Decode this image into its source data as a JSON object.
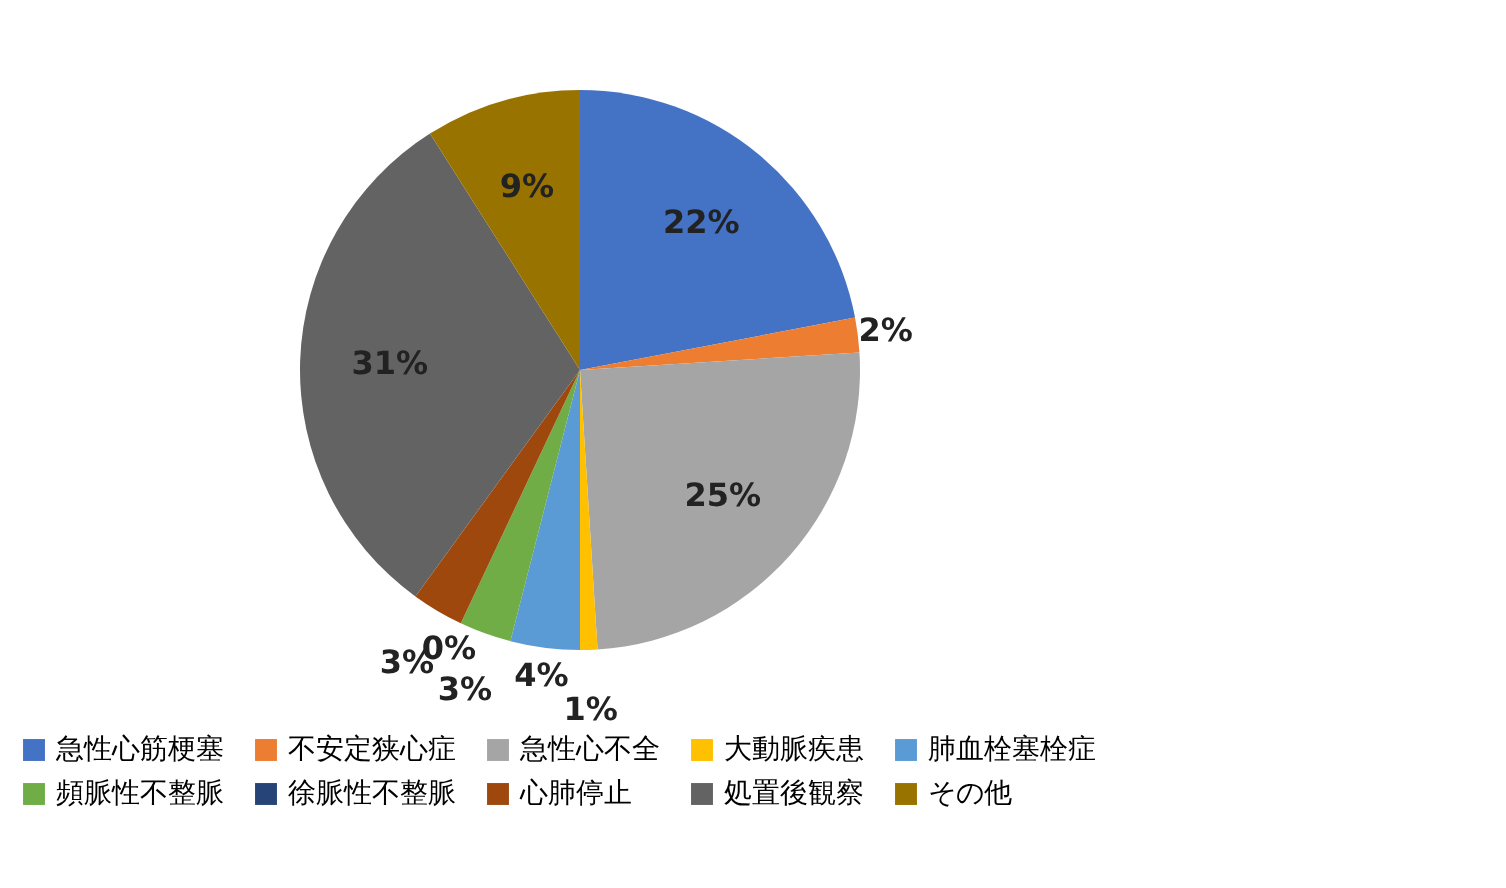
{
  "chart_data": {
    "type": "pie",
    "categories": [
      "急性心筋梗塞",
      "不安定狭心症",
      "急性心不全",
      "大動脈疾患",
      "肺血栓塞栓症",
      "頻脈性不整脈",
      "徐脈性不整脈",
      "心肺停止",
      "処置後観察",
      "その他"
    ],
    "values": [
      22,
      2,
      25,
      1,
      4,
      3,
      0,
      3,
      31,
      9
    ],
    "colors": [
      "#4472c4",
      "#ed7d31",
      "#a5a5a5",
      "#ffc000",
      "#5b9bd5",
      "#70ad47",
      "#264478",
      "#9e480e",
      "#636363",
      "#997300"
    ],
    "value_labels": [
      "22%",
      "2%",
      "25%",
      "1%",
      "4%",
      "3%",
      "0%",
      "3%",
      "31%",
      "9%"
    ],
    "legend": "bottom"
  }
}
